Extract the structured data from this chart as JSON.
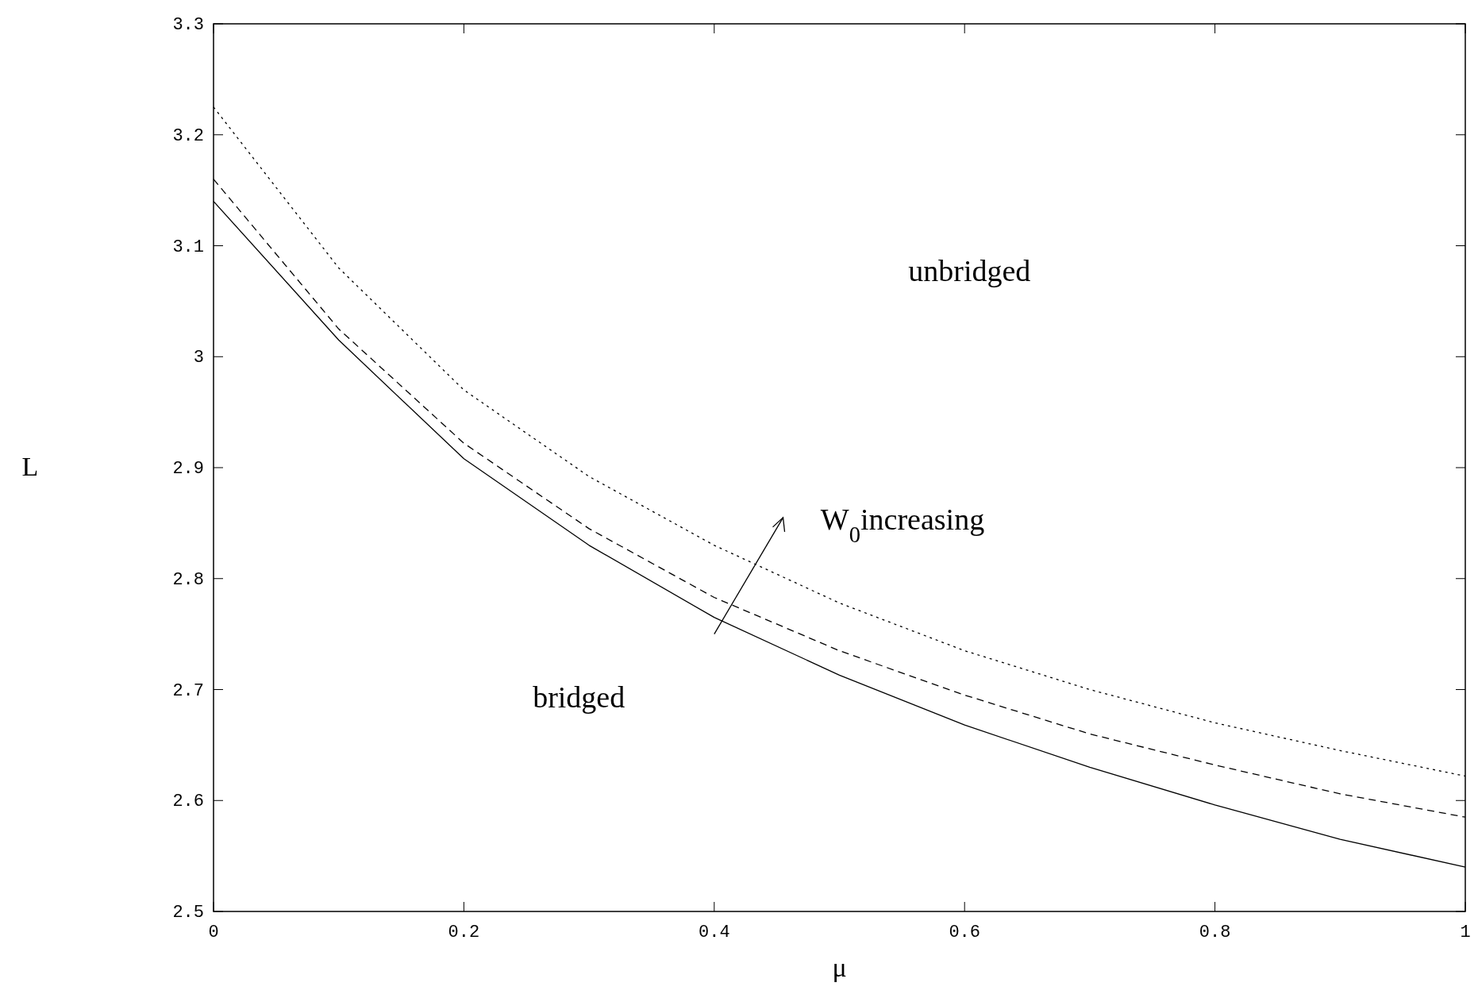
{
  "chart_data": {
    "type": "line",
    "xlabel": "μ",
    "ylabel": "L",
    "x": [
      0,
      0.1,
      0.2,
      0.3,
      0.4,
      0.5,
      0.6,
      0.7,
      0.8,
      0.9,
      1
    ],
    "series": [
      {
        "color": "#000000",
        "line_style": "solid",
        "values": [
          3.14,
          3.015,
          2.908,
          2.83,
          2.765,
          2.713,
          2.668,
          2.63,
          2.596,
          2.565,
          2.54
        ]
      },
      {
        "color": "#000000",
        "line_style": "dashed",
        "values": [
          3.16,
          3.025,
          2.922,
          2.845,
          2.783,
          2.735,
          2.695,
          2.66,
          2.632,
          2.606,
          2.585
        ]
      },
      {
        "color": "#000000",
        "line_style": "dotted",
        "values": [
          3.225,
          3.08,
          2.97,
          2.892,
          2.83,
          2.778,
          2.735,
          2.7,
          2.67,
          2.645,
          2.622
        ]
      }
    ],
    "xlim": [
      0,
      1
    ],
    "xticks": [
      0,
      0.2,
      0.4,
      0.6,
      0.8,
      1
    ],
    "ylim": [
      2.5,
      3.3
    ],
    "yticks": [
      2.5,
      2.6,
      2.7,
      2.8,
      2.9,
      3,
      3.1,
      3.2,
      3.3
    ],
    "grid": false,
    "annotations": [
      "unbridged",
      "bridged",
      "W$_{0}$increasing"
    ]
  }
}
